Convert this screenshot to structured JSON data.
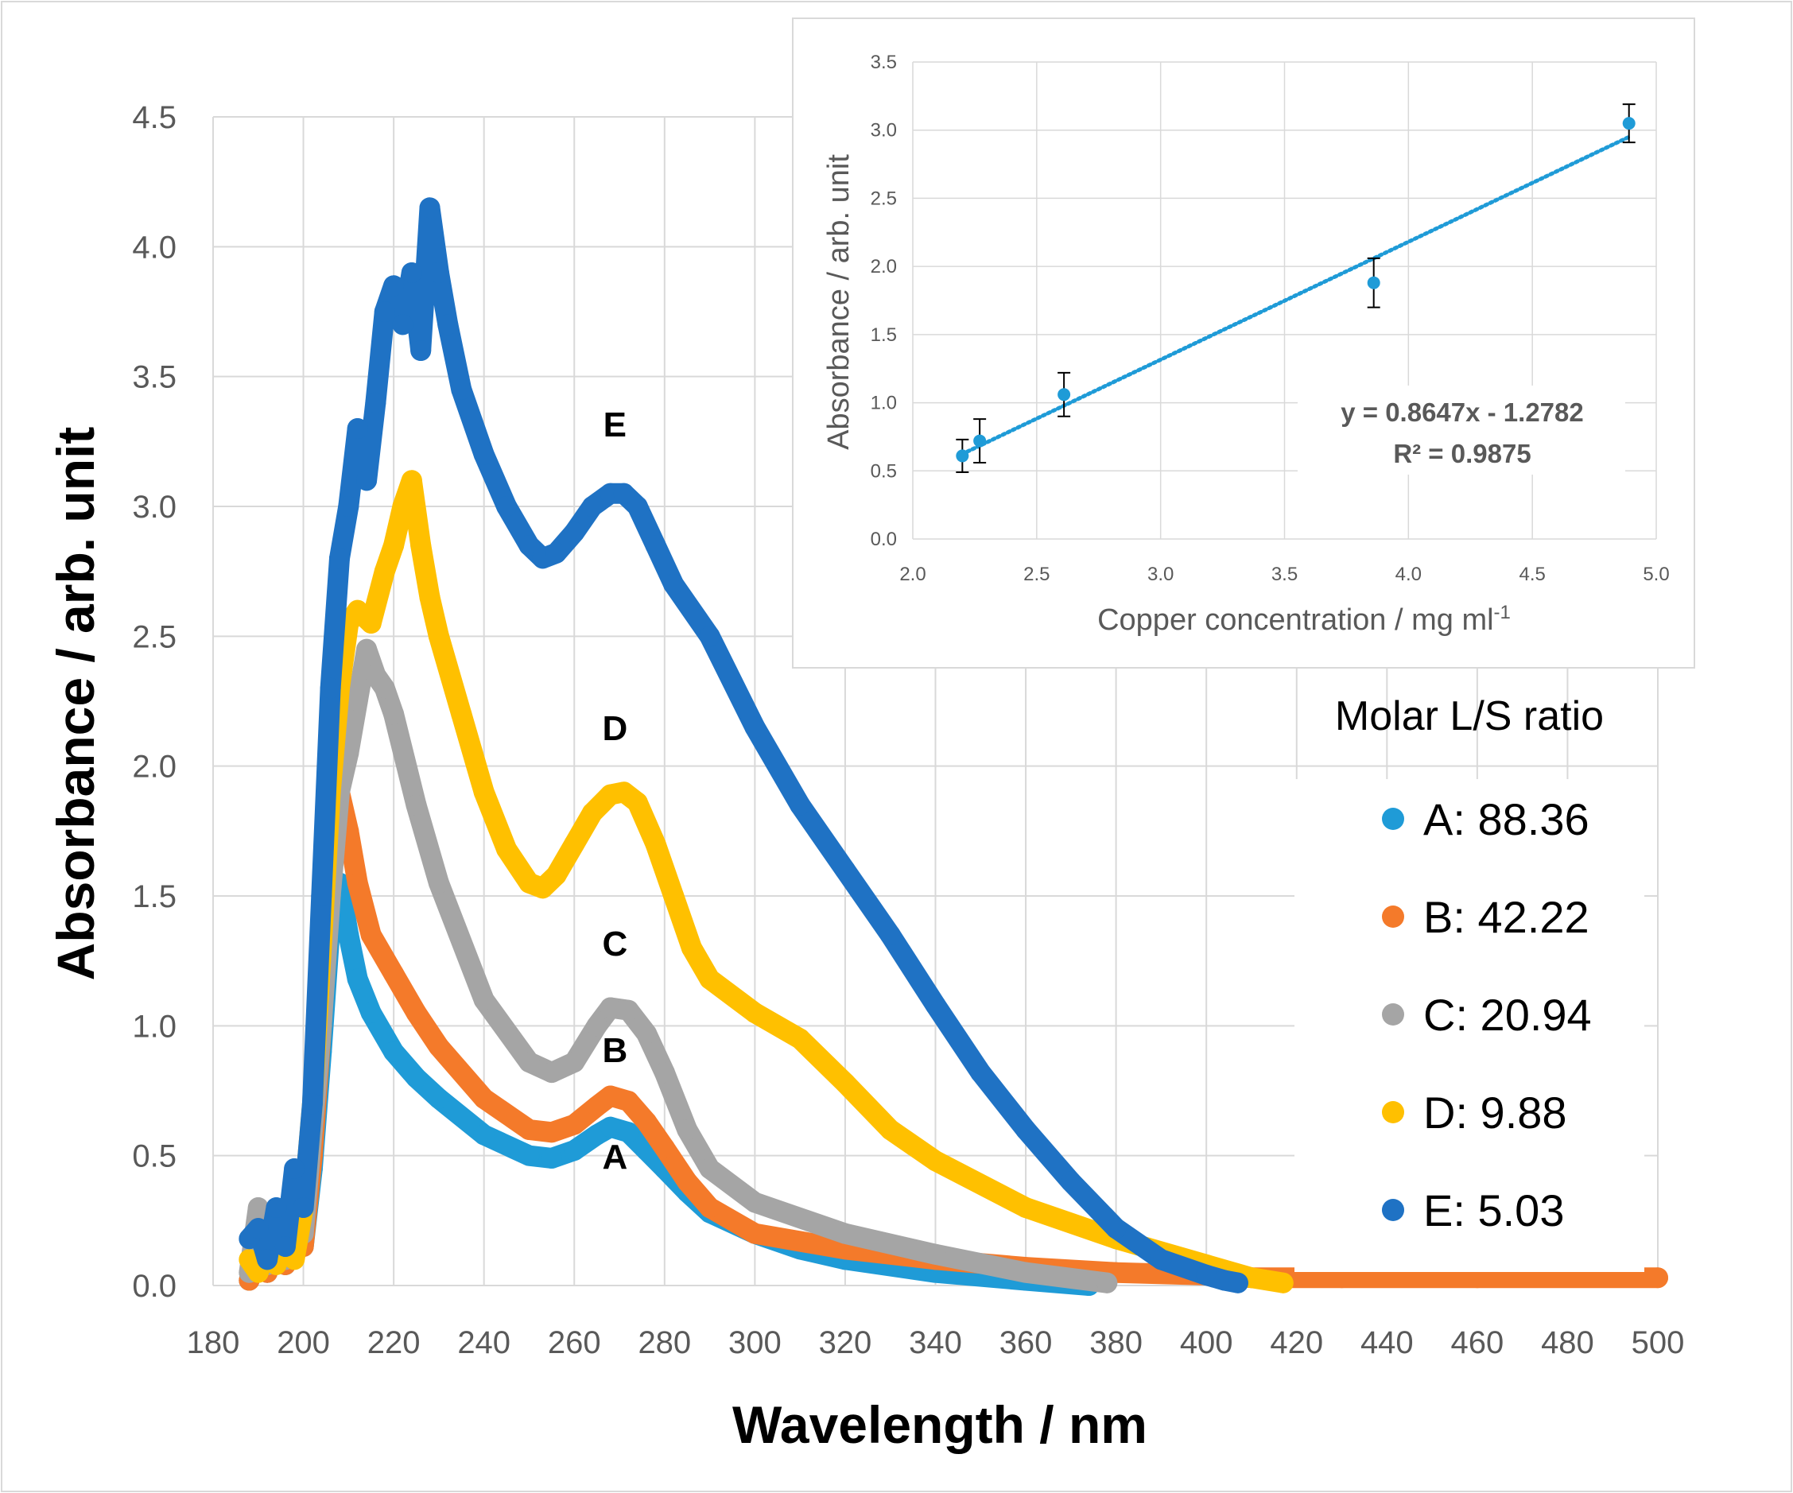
{
  "chart_data": [
    {
      "id": "main",
      "type": "scatter",
      "xlabel": "Wavelength / nm",
      "ylabel": "Absorbance  / arb. unit",
      "xlim": [
        180,
        500
      ],
      "ylim": [
        0,
        4.5
      ],
      "x_ticks": [
        180,
        200,
        220,
        240,
        260,
        280,
        300,
        320,
        340,
        360,
        380,
        400,
        420,
        440,
        460,
        480,
        500
      ],
      "x_tick_labels": [
        "180",
        "200",
        "220",
        "240",
        "260",
        "280",
        "300",
        "320",
        "340",
        "360",
        "380",
        "400",
        "420",
        "440",
        "460",
        "480",
        "500"
      ],
      "y_ticks": [
        0,
        0.5,
        1.0,
        1.5,
        2.0,
        2.5,
        3.0,
        3.5,
        4.0,
        4.5
      ],
      "y_tick_labels": [
        "0.0",
        "0.5",
        "1.0",
        "1.5",
        "2.0",
        "2.5",
        "3.0",
        "3.5",
        "4.0",
        "4.5"
      ],
      "grid": true,
      "legend": {
        "title": "Molar L/S ratio",
        "position": "right",
        "entries": [
          {
            "name": "A",
            "label": "A: 88.36",
            "color": "#1F9BD7"
          },
          {
            "name": "B",
            "label": "B: 42.22",
            "color": "#F47A2A"
          },
          {
            "name": "C",
            "label": "C: 20.94",
            "color": "#A5A5A5"
          },
          {
            "name": "D",
            "label": "D: 9.88",
            "color": "#FFC000"
          },
          {
            "name": "E",
            "label": "E: 5.03",
            "color": "#1F72C4"
          }
        ]
      },
      "annotations": [
        {
          "text": "A",
          "x": 269,
          "y": 0.45
        },
        {
          "text": "B",
          "x": 269,
          "y": 0.86
        },
        {
          "text": "C",
          "x": 269,
          "y": 1.27
        },
        {
          "text": "D",
          "x": 269,
          "y": 2.1
        },
        {
          "text": "E",
          "x": 269,
          "y": 3.27
        }
      ],
      "series": [
        {
          "name": "A",
          "color": "#1F9BD7",
          "x": [
            188,
            190,
            192,
            194,
            196,
            198,
            200,
            202,
            204,
            206,
            208,
            210,
            212,
            215,
            220,
            225,
            230,
            240,
            250,
            255,
            260,
            265,
            268,
            272,
            276,
            280,
            285,
            290,
            300,
            310,
            320,
            340,
            360,
            374
          ],
          "y": [
            0.02,
            0.15,
            0.05,
            0.25,
            0.08,
            0.35,
            0.15,
            0.45,
            0.9,
            1.4,
            1.55,
            1.35,
            1.18,
            1.05,
            0.9,
            0.8,
            0.72,
            0.58,
            0.5,
            0.49,
            0.52,
            0.58,
            0.61,
            0.59,
            0.52,
            0.45,
            0.36,
            0.28,
            0.2,
            0.14,
            0.1,
            0.05,
            0.02,
            0.0
          ]
        },
        {
          "name": "B",
          "color": "#F47A2A",
          "x": [
            188,
            190,
            192,
            194,
            196,
            198,
            200,
            202,
            204,
            206,
            207,
            208,
            210,
            212,
            215,
            220,
            225,
            230,
            240,
            250,
            255,
            260,
            265,
            268,
            272,
            276,
            280,
            285,
            290,
            300,
            320,
            340,
            360,
            380,
            400,
            410,
            430,
            460,
            500
          ],
          "y": [
            0.02,
            0.12,
            0.05,
            0.2,
            0.08,
            0.3,
            0.15,
            0.5,
            1.0,
            1.7,
            2.05,
            1.9,
            1.75,
            1.55,
            1.35,
            1.2,
            1.05,
            0.92,
            0.72,
            0.6,
            0.59,
            0.62,
            0.69,
            0.73,
            0.71,
            0.63,
            0.53,
            0.4,
            0.3,
            0.2,
            0.14,
            0.1,
            0.07,
            0.05,
            0.04,
            0.03,
            0.03,
            0.03,
            0.03
          ]
        },
        {
          "name": "C",
          "color": "#A5A5A5",
          "x": [
            188,
            190,
            192,
            194,
            196,
            198,
            200,
            202,
            204,
            206,
            208,
            210,
            212,
            214,
            216,
            218,
            220,
            225,
            230,
            240,
            250,
            255,
            260,
            265,
            268,
            272,
            276,
            280,
            285,
            290,
            300,
            320,
            340,
            360,
            378
          ],
          "y": [
            0.05,
            0.3,
            0.08,
            0.25,
            0.1,
            0.4,
            0.2,
            0.6,
            1.0,
            1.5,
            1.9,
            2.05,
            2.25,
            2.45,
            2.35,
            2.3,
            2.2,
            1.85,
            1.55,
            1.1,
            0.86,
            0.82,
            0.86,
            1.0,
            1.07,
            1.06,
            0.97,
            0.82,
            0.6,
            0.45,
            0.32,
            0.2,
            0.12,
            0.05,
            0.01
          ]
        },
        {
          "name": "D",
          "color": "#FFC000",
          "x": [
            188,
            190,
            192,
            194,
            196,
            198,
            200,
            202,
            204,
            206,
            208,
            210,
            212,
            215,
            218,
            220,
            222,
            224,
            226,
            228,
            230,
            235,
            240,
            245,
            250,
            253,
            256,
            260,
            264,
            268,
            271,
            274,
            278,
            282,
            286,
            290,
            300,
            310,
            320,
            330,
            340,
            360,
            380,
            400,
            410,
            417
          ],
          "y": [
            0.1,
            0.05,
            0.15,
            0.08,
            0.2,
            0.1,
            0.3,
            0.7,
            1.3,
            1.9,
            2.3,
            2.55,
            2.6,
            2.55,
            2.75,
            2.85,
            3.0,
            3.1,
            2.85,
            2.65,
            2.5,
            2.2,
            1.9,
            1.68,
            1.55,
            1.53,
            1.58,
            1.7,
            1.82,
            1.89,
            1.9,
            1.86,
            1.7,
            1.5,
            1.3,
            1.18,
            1.05,
            0.95,
            0.78,
            0.6,
            0.48,
            0.3,
            0.18,
            0.08,
            0.03,
            0.01
          ]
        },
        {
          "name": "E",
          "color": "#1F72C4",
          "x": [
            188,
            190,
            192,
            194,
            196,
            198,
            200,
            202,
            204,
            206,
            208,
            210,
            212,
            214,
            216,
            218,
            220,
            222,
            224,
            226,
            228,
            230,
            232,
            235,
            240,
            245,
            250,
            253,
            256,
            260,
            264,
            268,
            271,
            274,
            278,
            282,
            290,
            300,
            310,
            320,
            330,
            340,
            350,
            360,
            370,
            380,
            390,
            400,
            404,
            407
          ],
          "y": [
            0.18,
            0.22,
            0.1,
            0.3,
            0.15,
            0.45,
            0.3,
            0.7,
            1.5,
            2.3,
            2.8,
            3.0,
            3.3,
            3.1,
            3.4,
            3.75,
            3.85,
            3.7,
            3.9,
            3.6,
            4.15,
            3.9,
            3.7,
            3.45,
            3.2,
            3.0,
            2.85,
            2.8,
            2.82,
            2.9,
            3.0,
            3.05,
            3.05,
            3.0,
            2.85,
            2.7,
            2.5,
            2.15,
            1.85,
            1.6,
            1.35,
            1.08,
            0.82,
            0.6,
            0.4,
            0.22,
            0.1,
            0.04,
            0.02,
            0.01
          ]
        }
      ]
    },
    {
      "id": "inset",
      "type": "scatter",
      "xlabel": "Copper concentration / mg ml",
      "xlabel_superscript": "-1",
      "ylabel": "Absorbance / arb. unit",
      "xlim": [
        2.0,
        5.0
      ],
      "ylim": [
        0.0,
        3.5
      ],
      "x_ticks": [
        2.0,
        2.5,
        3.0,
        3.5,
        4.0,
        4.5,
        5.0
      ],
      "x_tick_labels": [
        "2.0",
        "2.5",
        "3.0",
        "3.5",
        "4.0",
        "4.5",
        "5.0"
      ],
      "y_ticks": [
        0.0,
        0.5,
        1.0,
        1.5,
        2.0,
        2.5,
        3.0,
        3.5
      ],
      "y_tick_labels": [
        "0.0",
        "0.5",
        "1.0",
        "1.5",
        "2.0",
        "2.5",
        "3.0",
        "3.5"
      ],
      "grid": true,
      "point_color": "#1F9BD7",
      "points": [
        {
          "x": 2.2,
          "y": 0.61,
          "err": 0.12
        },
        {
          "x": 2.27,
          "y": 0.72,
          "err": 0.16
        },
        {
          "x": 2.61,
          "y": 1.06,
          "err": 0.16
        },
        {
          "x": 3.86,
          "y": 1.88,
          "err": 0.18
        },
        {
          "x": 4.89,
          "y": 3.05,
          "err": 0.14
        }
      ],
      "trendline": {
        "slope": 0.8647,
        "intercept": -1.2782,
        "x_range": [
          2.2,
          4.89
        ],
        "style": "dotted"
      },
      "equation_text": "y = 0.8647x - 1.2782",
      "r2_text": "R² = 0.9875"
    }
  ]
}
